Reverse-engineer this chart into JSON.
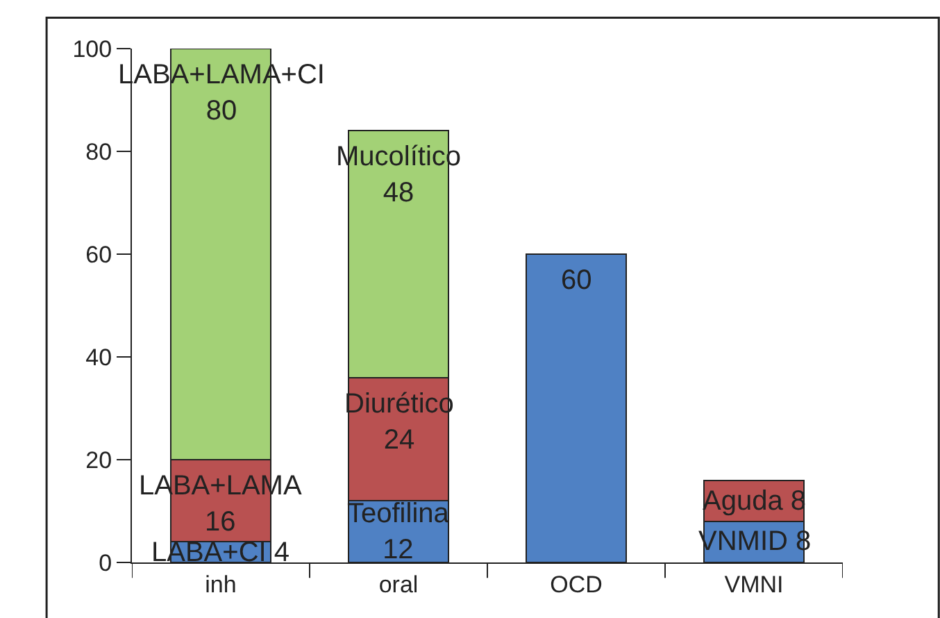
{
  "chart_data": {
    "type": "bar",
    "stacked": true,
    "categories": [
      "inh",
      "oral",
      "OCD",
      "VMNI"
    ],
    "series": [
      {
        "color": "#4f81c4",
        "values": [
          4,
          12,
          60,
          8
        ],
        "value_labels": [
          "LABA+CI 4",
          "Teofilina\n12",
          "60",
          "VNMID 8"
        ]
      },
      {
        "color": "#b95151",
        "values": [
          16,
          24,
          null,
          8
        ],
        "value_labels": [
          "LABA+LAMA\n16",
          "Diurético\n24",
          null,
          "Aguda 8"
        ]
      },
      {
        "color": "#a3d176",
        "values": [
          80,
          48,
          null,
          null
        ],
        "value_labels": [
          "LABA+LAMA+CI\n80",
          "Mucolítico\n48",
          null,
          null
        ]
      }
    ],
    "ylim": [
      0,
      100
    ],
    "yticks": [
      0,
      20,
      40,
      60,
      80,
      100
    ],
    "legend": false
  }
}
